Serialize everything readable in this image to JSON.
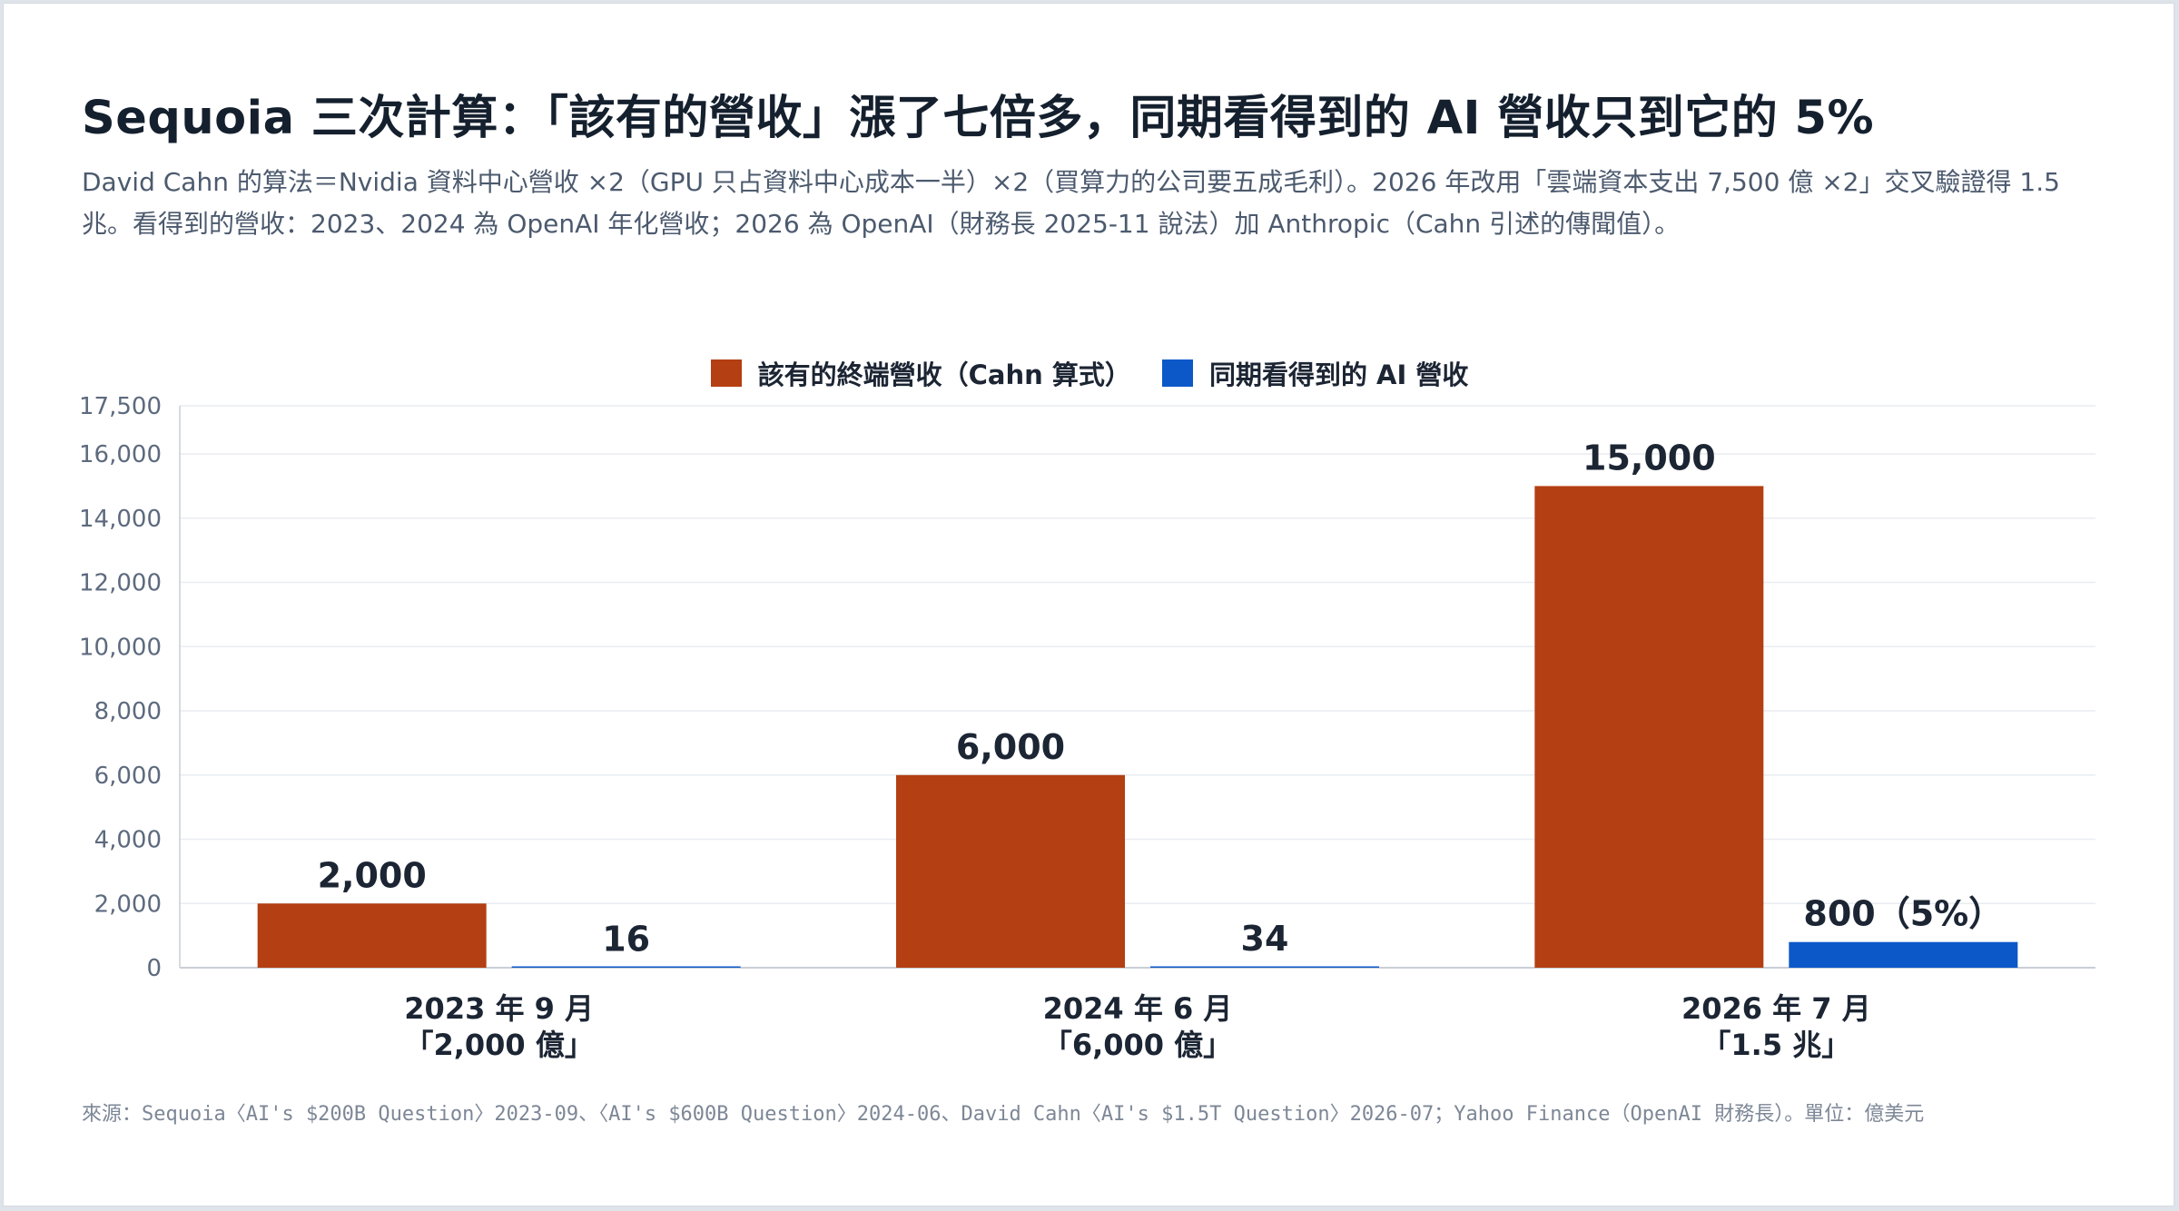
{
  "title": "Sequoia 三次計算：「該有的營收」漲了七倍多，同期看得到的 AI 營收只到它的 5%",
  "subtitle": "David Cahn 的算法＝Nvidia 資料中心營收 ×2（GPU 只占資料中心成本一半）×2（買算力的公司要五成毛利）。2026 年改用「雲端資本支出 7,500 億 ×2」交叉驗證得 1.5 兆。看得到的營收：2023、2024 為 OpenAI 年化營收；2026 為 OpenAI（財務長 2025-11 說法）加 Anthropic（Cahn 引述的傳聞值）。",
  "source": "來源：Sequoia〈AI's $200B Question〉2023-09、〈AI's $600B Question〉2024-06、David Cahn〈AI's $1.5T Question〉2026-07；Yahoo Finance（OpenAI 財務長）。單位：億美元",
  "colors": {
    "series_1": "#b33f12",
    "series_2": "#0c58c8",
    "grid": "#e9ecf1",
    "axis_text": "#5d6a7e",
    "label_text": "#1c2533"
  },
  "chart_data": {
    "type": "bar",
    "categories": [
      {
        "line1": "2023 年 9 月",
        "line2": "「2,000 億」"
      },
      {
        "line1": "2024 年 6 月",
        "line2": "「6,000 億」"
      },
      {
        "line1": "2026 年 7 月",
        "line2": "「1.5 兆」"
      }
    ],
    "series": [
      {
        "name": "該有的終端營收（Cahn 算式）",
        "values": [
          2000,
          6000,
          15000
        ],
        "labels": [
          "2,000",
          "6,000",
          "15,000"
        ]
      },
      {
        "name": "同期看得到的 AI 營收",
        "values": [
          16,
          34,
          800
        ],
        "labels": [
          "16",
          "34",
          "800（5%）"
        ]
      }
    ],
    "ylim": [
      0,
      17500
    ],
    "yticks": [
      0,
      2000,
      4000,
      6000,
      8000,
      10000,
      12000,
      14000,
      16000,
      17500
    ],
    "ytick_labels": [
      "0",
      "2,000",
      "4,000",
      "6,000",
      "8,000",
      "10,000",
      "12,000",
      "14,000",
      "16,000",
      "17,500"
    ],
    "grid": true,
    "legend_position": "top-center"
  }
}
